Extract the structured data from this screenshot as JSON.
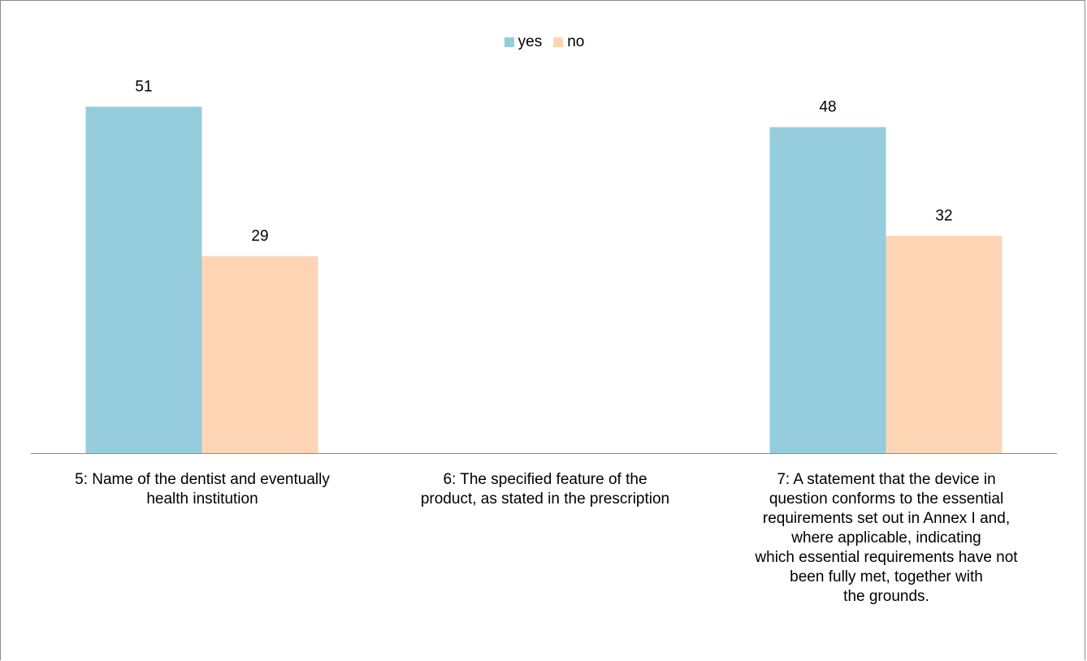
{
  "chart_data": {
    "type": "bar",
    "categories": [
      "5: Name of the dentist and eventually\nhealth institution",
      "6: The specified feature of the\nproduct, as stated in the prescription",
      "7: A statement that the device in\nquestion conforms to the essential\nrequirements set out in Annex I and,\nwhere applicable, indicating\nwhich essential requirements have not\nbeen fully met, together with\nthe grounds."
    ],
    "series": [
      {
        "name": "yes",
        "values": [
          51,
          null,
          48
        ],
        "color": "#95cddc"
      },
      {
        "name": "no",
        "values": [
          29,
          null,
          32
        ],
        "color": "#fdd5b5"
      }
    ],
    "data_labels": true,
    "legend": "top-center",
    "grid": false,
    "ylim": [
      0,
      66.6
    ]
  }
}
